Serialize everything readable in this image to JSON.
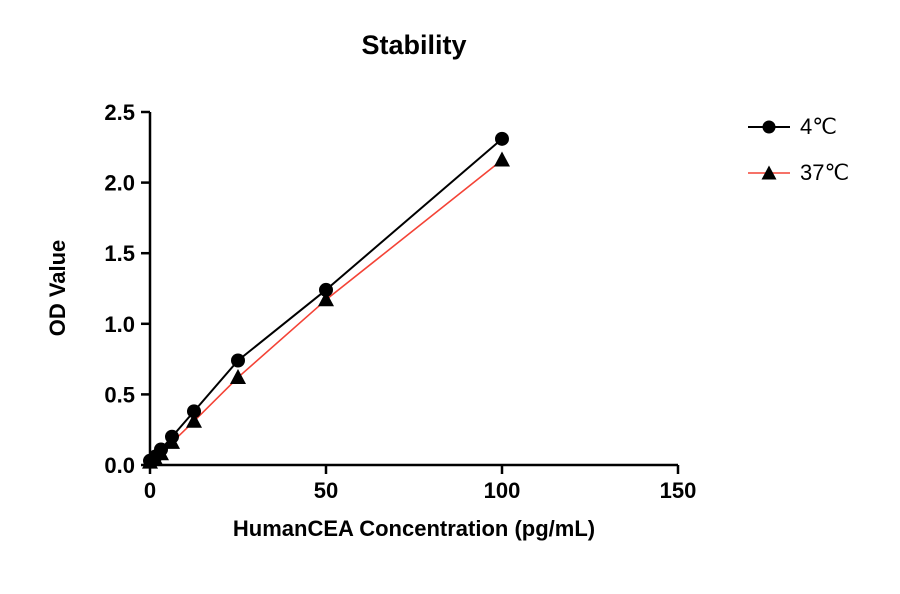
{
  "chart_data": {
    "type": "line",
    "title": "Stability",
    "xlabel": "HumanCEA Concentration (pg/mL)",
    "ylabel": "OD Value",
    "xlim": [
      0,
      150
    ],
    "ylim": [
      0,
      2.5
    ],
    "xticks": [
      0,
      50,
      100,
      150
    ],
    "xtick_labels": [
      "0",
      "50",
      "100",
      "150"
    ],
    "yticks": [
      0,
      0.5,
      1,
      1.5,
      2,
      2.5
    ],
    "ytick_labels": [
      "0.0",
      "0.5",
      "1.0",
      "1.5",
      "2.0",
      "2.5"
    ],
    "grid": false,
    "legend_position": "right",
    "background": "#ffffff",
    "axis_color": "#000000",
    "x": [
      0,
      1.56,
      3.125,
      6.25,
      12.5,
      25,
      50,
      100
    ],
    "series": [
      {
        "name": "4℃",
        "marker": "circle",
        "marker_color": "#000000",
        "line_color": "#000000",
        "line_width": 2,
        "values": [
          0.03,
          0.06,
          0.11,
          0.2,
          0.38,
          0.74,
          1.24,
          2.31
        ]
      },
      {
        "name": "37℃",
        "marker": "triangle",
        "marker_color": "#000000",
        "line_color": "#f44336",
        "line_width": 1.6,
        "values": [
          0.02,
          0.04,
          0.08,
          0.16,
          0.31,
          0.62,
          1.17,
          2.16
        ]
      }
    ]
  }
}
